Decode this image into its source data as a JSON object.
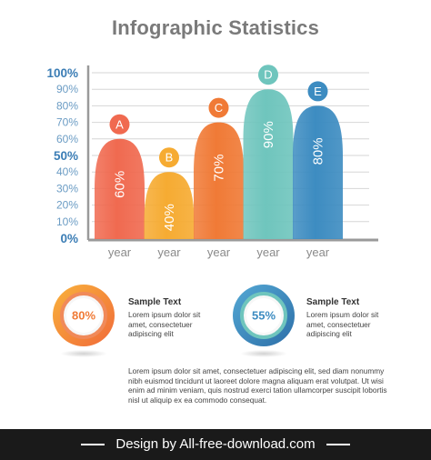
{
  "header": {
    "title": "Infographic Statistics"
  },
  "chart_data": {
    "type": "bar",
    "categories": [
      "year",
      "year",
      "year",
      "year",
      "year"
    ],
    "markers": [
      "A",
      "B",
      "C",
      "D",
      "E"
    ],
    "values": [
      60,
      40,
      70,
      90,
      80
    ],
    "value_labels": [
      "60%",
      "40%",
      "70%",
      "90%",
      "80%"
    ],
    "colors": [
      "#f06a50",
      "#f6ab32",
      "#f07a36",
      "#6fc5bd",
      "#3d8cc1"
    ],
    "ylim": [
      0,
      100
    ],
    "yticks": [
      "0%",
      "10%",
      "20%",
      "30%",
      "40%",
      "50%",
      "60%",
      "70%",
      "80%",
      "90%",
      "100%"
    ],
    "grid": true
  },
  "stats": [
    {
      "value": "80%",
      "label": "Sample Text",
      "text": [
        "Lorem ipsum dolor sit",
        "amet, consectetuer",
        "adipiscing elit"
      ],
      "color": "#f07a36"
    },
    {
      "value": "55%",
      "label": "Sample Text",
      "text": [
        "Lorem ipsum dolor sit",
        "amet, consectetuer",
        "adipiscing elit"
      ],
      "color": "#3d8cc1"
    }
  ],
  "paragraph": "Lorem ipsum dolor sit amet, consectetuer adipiscing elit, sed diam nonummy nibh euismod tincidunt ut laoreet dolore magna aliquam erat volutpat. Ut wisi enim ad minim veniam, quis nostrud exerci tation ullamcorper suscipit lobortis nisl ut aliquip ex ea commodo consequat.",
  "footer": {
    "text": "Design by All-free-download.com"
  }
}
